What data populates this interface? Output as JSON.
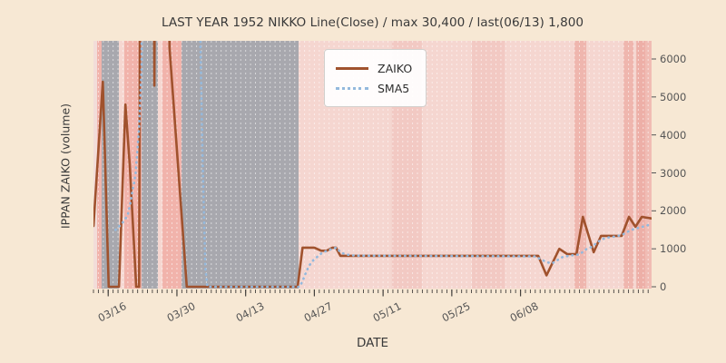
{
  "title": "LAST YEAR 1952 NIKKO Line(Close) / max 30,400 / last(06/13) 1,800",
  "axes": {
    "x_label": "DATE",
    "y_label": "IPPAN ZAIKO (volume)",
    "x_tick_labels": [
      "03/16",
      "03/30",
      "04/13",
      "04/27",
      "05/11",
      "05/25",
      "06/08"
    ],
    "y_tick_labels": [
      "0",
      "1000",
      "2000",
      "3000",
      "4000",
      "5000",
      "6000"
    ]
  },
  "legend": {
    "items": [
      {
        "label": "ZAIKO",
        "style": "solid",
        "color": "#a0522d"
      },
      {
        "label": "SMA5",
        "style": "dotted",
        "color": "#94b9dd"
      }
    ]
  },
  "colors": {
    "figure_bg": "#f7e8d4",
    "plot_base": "#f5d6d0",
    "band_gray": "#a8a8ae",
    "band_salmon": "#f1b3ab",
    "band_lightpink": "#f6d7d1",
    "band_edge": "#f2ddd9",
    "band_faint": "#f2c9c3",
    "band_salmon2": "#efb6ae",
    "band_salmon3": "#edafa7",
    "band_salmon4": "#f0bcb4",
    "grid_line": "rgba(255,255,255,0.55)",
    "tick_color": "#44413e",
    "text_color": "#3a3a3a",
    "tick_label_color": "#555555"
  },
  "chart_data": {
    "type": "line",
    "title": "LAST YEAR 1952 NIKKO Line(Close) / max 30,400 / last(06/13) 1,800",
    "xlabel": "DATE",
    "ylabel": "IPPAN ZAIKO (volume)",
    "x_unit": "day_index_from_chart_start",
    "x_range": [
      0,
      113.7
    ],
    "y_display_range": [
      0,
      6478
    ],
    "y_ticks": [
      0,
      1000,
      2000,
      3000,
      4000,
      5000,
      6000
    ],
    "x_ticks": {
      "days": [
        3,
        17,
        31,
        45,
        59,
        73,
        87
      ],
      "labels": [
        "03/16",
        "03/30",
        "04/13",
        "04/27",
        "05/11",
        "05/25",
        "06/08"
      ]
    },
    "minor_tick_every_days": 1,
    "grid": "vertical daily dashed white lines, no horizontal grid",
    "legend_position": "upper center-left, white box",
    "annotations": {
      "max_value": 30400,
      "last_date": "06/13",
      "last_value": 1800
    },
    "series": [
      {
        "name": "ZAIKO",
        "color": "#a0522d",
        "style": "solid",
        "width": 2.6,
        "points": [
          [
            0,
            1600
          ],
          [
            1.9,
            5400
          ],
          [
            3.1,
            0
          ],
          [
            5.2,
            0
          ],
          [
            6.5,
            4800
          ],
          [
            7.4,
            3200
          ],
          [
            8.7,
            0
          ],
          [
            9.3,
            0
          ],
          [
            10,
            30400
          ],
          [
            11.5,
            30400
          ],
          [
            12.4,
            5300
          ],
          [
            13.3,
            30400
          ],
          [
            14.8,
            30400
          ],
          [
            15.5,
            6300
          ],
          [
            19,
            0
          ],
          [
            41.6,
            0
          ],
          [
            42.6,
            1030
          ],
          [
            45,
            1030
          ],
          [
            46.4,
            950
          ],
          [
            47.5,
            950
          ],
          [
            48.7,
            1030
          ],
          [
            49.4,
            1030
          ],
          [
            50.3,
            815
          ],
          [
            90.6,
            815
          ],
          [
            92.3,
            300
          ],
          [
            94.9,
            1000
          ],
          [
            96.5,
            860
          ],
          [
            98.4,
            860
          ],
          [
            99.7,
            1840
          ],
          [
            101.9,
            910
          ],
          [
            103.4,
            1340
          ],
          [
            107.6,
            1340
          ],
          [
            109.1,
            1840
          ],
          [
            110.4,
            1580
          ],
          [
            111.7,
            1840
          ],
          [
            113.7,
            1800
          ]
        ]
      },
      {
        "name": "SMA5",
        "color": "#94b9dd",
        "style": "dotted",
        "width": 2.6,
        "points": [
          [
            4.5,
            1500
          ],
          [
            5.5,
            1620
          ],
          [
            6.3,
            1750
          ],
          [
            7,
            1900
          ],
          [
            7.6,
            2250
          ],
          [
            7.9,
            2500
          ],
          [
            8.3,
            2750
          ],
          [
            8.6,
            3000
          ],
          [
            9.3,
            4200
          ],
          [
            9.8,
            5800
          ],
          [
            10.3,
            30400
          ],
          [
            21,
            30400
          ],
          [
            21.8,
            6300
          ],
          [
            22.3,
            3000
          ],
          [
            22.8,
            500
          ],
          [
            23.2,
            0
          ],
          [
            42,
            0
          ],
          [
            42.6,
            150
          ],
          [
            43.2,
            350
          ],
          [
            43.9,
            550
          ],
          [
            44.8,
            700
          ],
          [
            45.7,
            800
          ],
          [
            46.6,
            900
          ],
          [
            47.6,
            950
          ],
          [
            48.6,
            1000
          ],
          [
            49.5,
            1030
          ],
          [
            50.4,
            900
          ],
          [
            51.5,
            850
          ],
          [
            52.5,
            830
          ],
          [
            53.5,
            820
          ],
          [
            90,
            800
          ],
          [
            91.5,
            700
          ],
          [
            92.5,
            640
          ],
          [
            93.5,
            620
          ],
          [
            94.5,
            700
          ],
          [
            95.5,
            780
          ],
          [
            97,
            820
          ],
          [
            99,
            850
          ],
          [
            100.5,
            1000
          ],
          [
            101.5,
            1050
          ],
          [
            102.5,
            1150
          ],
          [
            103.5,
            1250
          ],
          [
            105,
            1300
          ],
          [
            106.5,
            1330
          ],
          [
            107.5,
            1360
          ],
          [
            108.5,
            1420
          ],
          [
            109.5,
            1500
          ],
          [
            110.5,
            1530
          ],
          [
            111.5,
            1570
          ],
          [
            112.5,
            1600
          ],
          [
            113.5,
            1650
          ]
        ]
      }
    ],
    "background_bands": [
      {
        "from": 0,
        "to": 0.74,
        "color": "band_edge"
      },
      {
        "from": 0.74,
        "to": 1.66,
        "color": "band_salmon"
      },
      {
        "from": 1.66,
        "to": 5.18,
        "color": "band_gray"
      },
      {
        "from": 5.18,
        "to": 6.29,
        "color": "band_lightpink"
      },
      {
        "from": 6.29,
        "to": 9.8,
        "color": "band_salmon"
      },
      {
        "from": 9.8,
        "to": 13.13,
        "color": "band_gray"
      },
      {
        "from": 13.13,
        "to": 14.05,
        "color": "band_lightpink"
      },
      {
        "from": 14.05,
        "to": 17.94,
        "color": "band_salmon"
      },
      {
        "from": 17.94,
        "to": 41.79,
        "color": "band_gray"
      },
      {
        "from": 41.79,
        "to": 113.7,
        "color": "plot_base"
      },
      {
        "from": 60.8,
        "to": 66.9,
        "color": "band_faint"
      },
      {
        "from": 77.1,
        "to": 83.8,
        "color": "band_faint"
      },
      {
        "from": 98.0,
        "to": 100.4,
        "color": "band_salmon2"
      },
      {
        "from": 108.0,
        "to": 110.0,
        "color": "band_salmon2"
      },
      {
        "from": 110.6,
        "to": 112.4,
        "color": "band_salmon3"
      },
      {
        "from": 112.4,
        "to": 113.7,
        "color": "band_salmon4"
      }
    ]
  }
}
